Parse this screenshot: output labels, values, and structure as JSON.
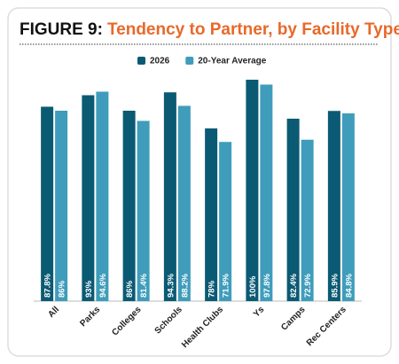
{
  "chart_data": {
    "type": "bar",
    "title_prefix": "FIGURE 9:",
    "title": "Tendency to Partner, by Facility Type",
    "categories": [
      "All",
      "Parks",
      "Colleges",
      "Schools",
      "Health Clubs",
      "Ys",
      "Camps",
      "Rec Centers"
    ],
    "series": [
      {
        "name": "2026",
        "color": "#0b5a74",
        "values": [
          87.8,
          93,
          86,
          94.3,
          78,
          100,
          82.4,
          85.9
        ],
        "value_labels": [
          "87.8%",
          "93%",
          "86%",
          "94.3%",
          "78%",
          "100%",
          "82.4%",
          "85.9%"
        ]
      },
      {
        "name": "20-Year Average",
        "color": "#3f9dbb",
        "values": [
          86,
          94.6,
          81.4,
          88.2,
          71.9,
          97.8,
          72.9,
          84.8
        ],
        "value_labels": [
          "86%",
          "94.6%",
          "81.4%",
          "88.2%",
          "71.9%",
          "97.8%",
          "72.9%",
          "84.8%"
        ]
      }
    ]
  }
}
